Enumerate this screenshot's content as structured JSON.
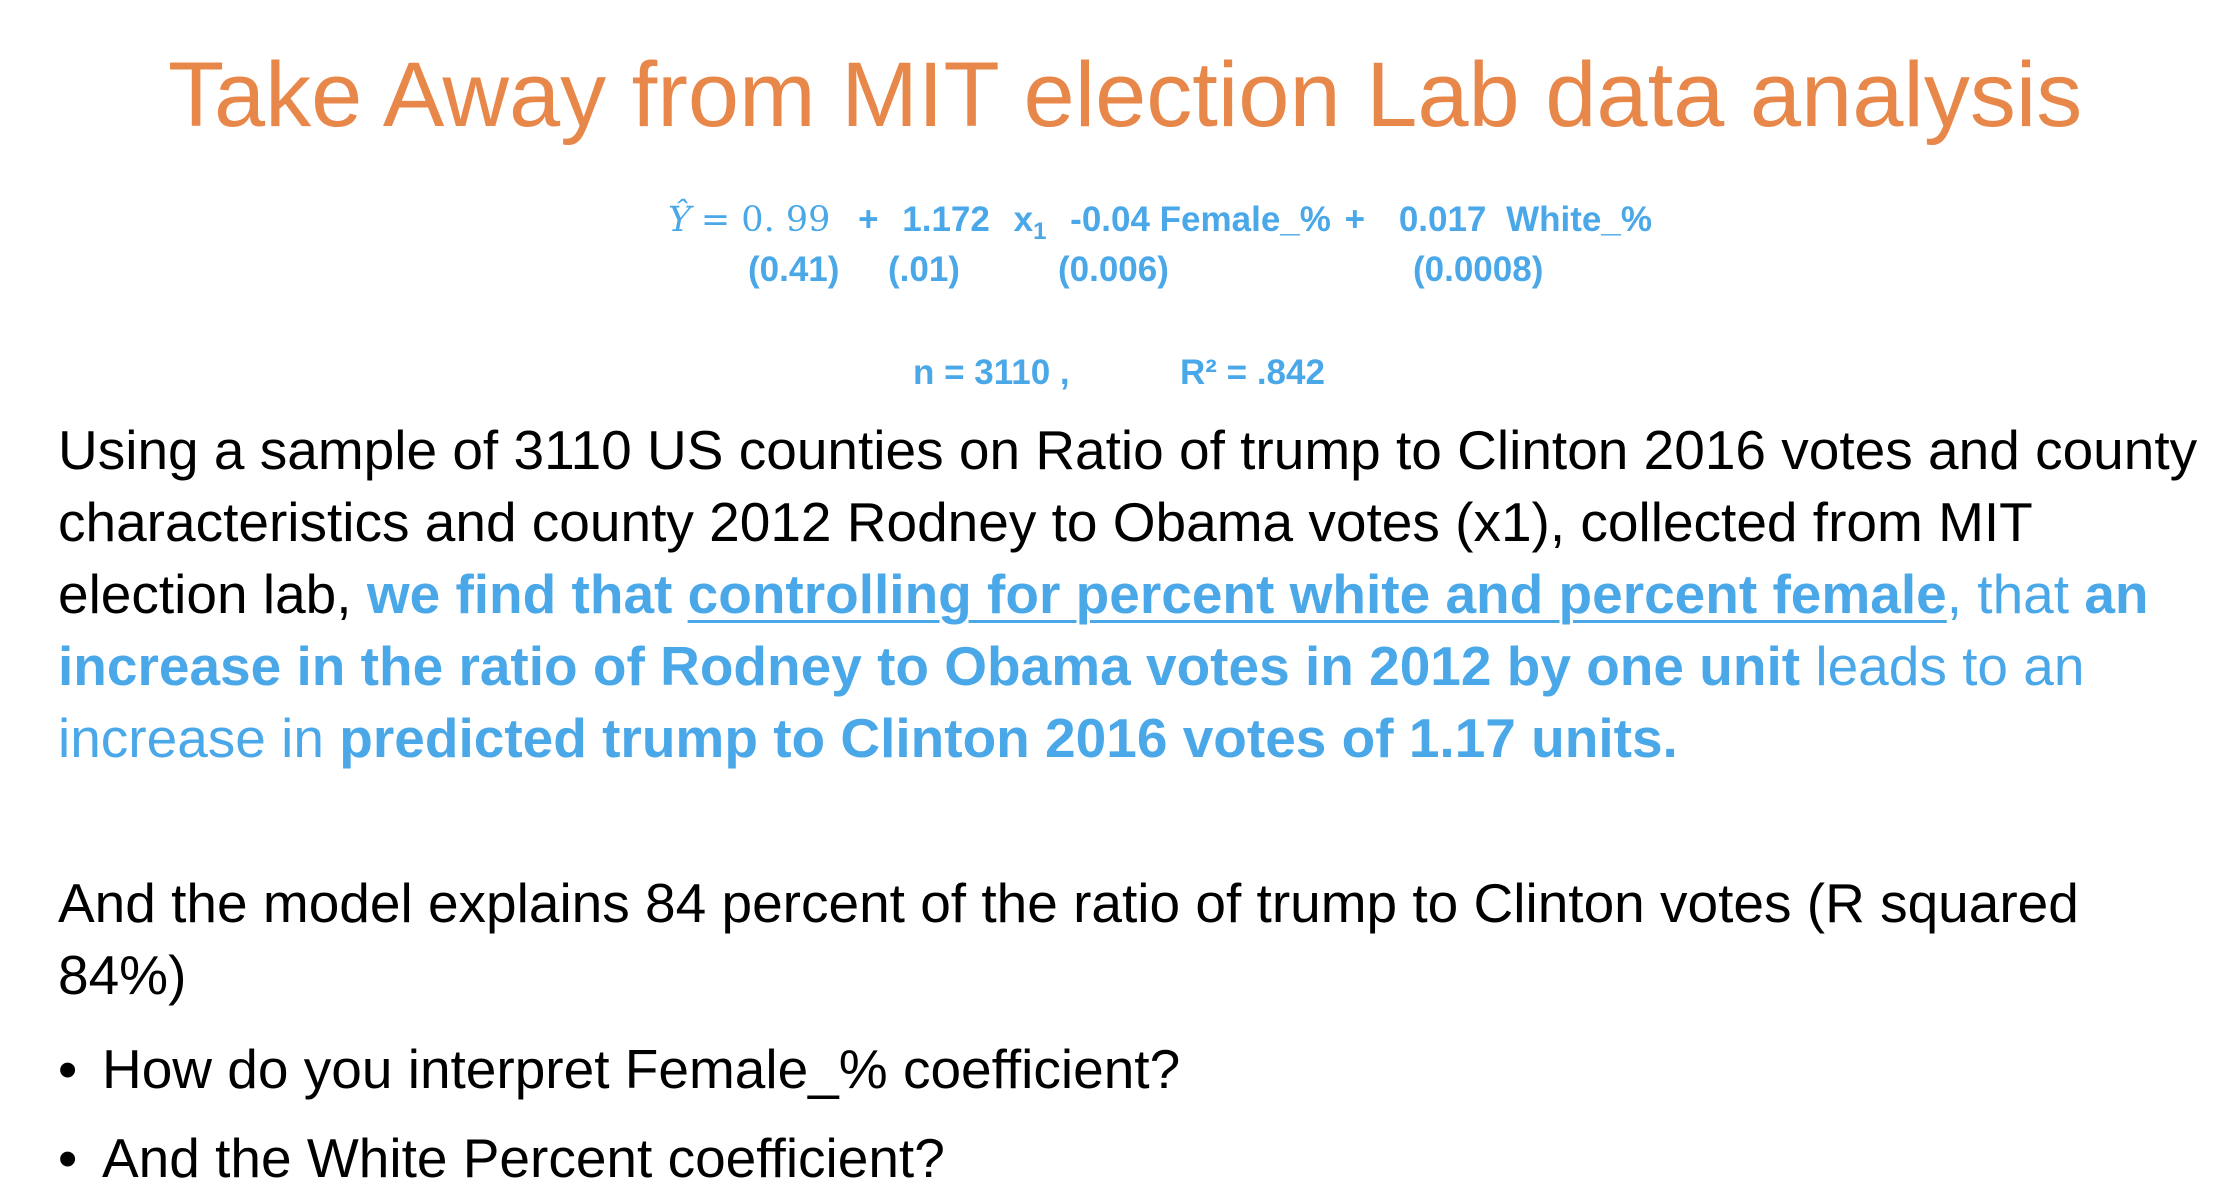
{
  "title": "Take Away from MIT election Lab data analysis",
  "equation": {
    "yhat": "Ŷ",
    "equals": "= 0. 99",
    "plus1": "+",
    "b1": "1.172",
    "x": "x",
    "x_sub": "1",
    "female_term": "-0.04 Female_%",
    "plus2": "+",
    "b3": "0.017",
    "white_var": "White_%",
    "se_intercept": "(0.41)",
    "se_x1": "(.01)",
    "se_female": "(0.006)",
    "se_white": "(0.0008)",
    "n": "n = 3110 ,",
    "r2": "R² = .842"
  },
  "paragraph1": {
    "plain": "Using a sample of 3110 US counties on Ratio of trump to Clinton 2016 votes and county characteristics and county 2012 Rodney to Obama votes (x1), collected from MIT election lab,",
    "bold_find": "we find that",
    "underline_control": "controlling for percent white and percent female",
    "comma_that": ", that",
    "bold_increase": "an increase in the ratio of Rodney to Obama votes in 2012 by one unit",
    "leads": "leads to an increase in",
    "bold_predicted": "predicted trump to Clinton 2016 votes of 1.17 units."
  },
  "paragraph2": "And the model explains 84 percent of the ratio of trump to Clinton votes (R squared 84%)",
  "bullets": [
    "How do you interpret Female_% coefficient?",
    "And the White Percent coefficient?"
  ],
  "bullet_glyph": "•",
  "colors": {
    "title": "#E8874A",
    "accent_blue": "#4AA8E8",
    "text": "#000000"
  }
}
